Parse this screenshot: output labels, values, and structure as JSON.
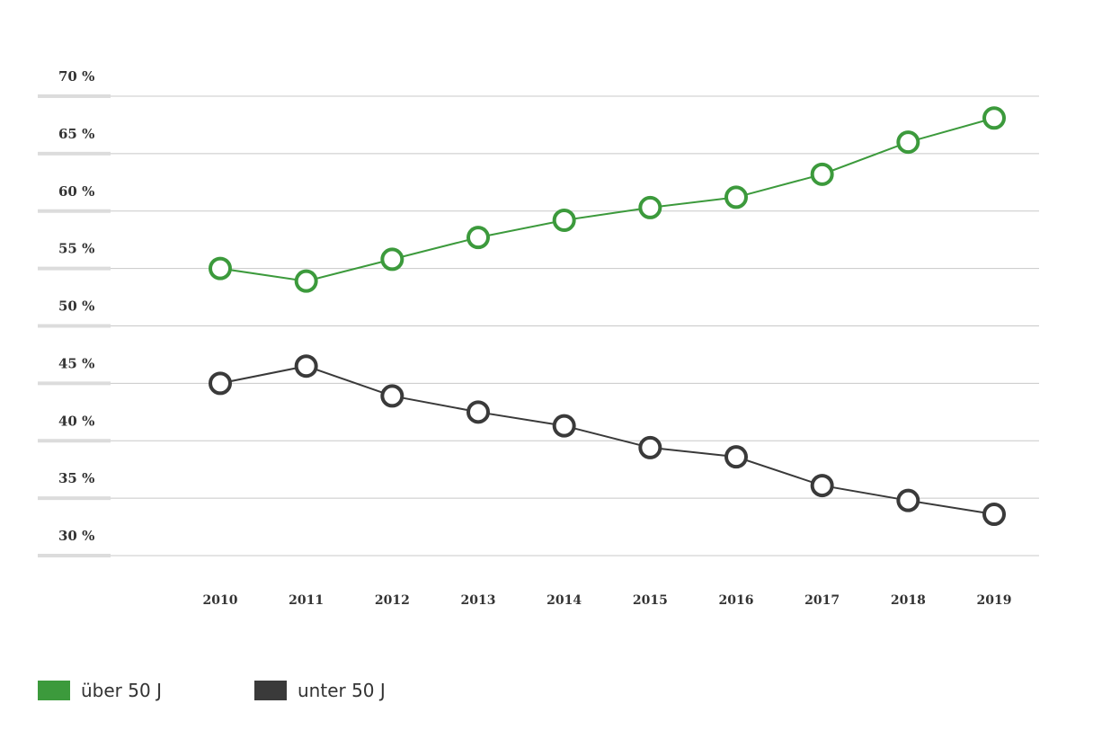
{
  "chart_data": {
    "type": "line",
    "title": "",
    "xlabel": "",
    "ylabel": "",
    "x": [
      "2010",
      "2011",
      "2012",
      "2013",
      "2014",
      "2015",
      "2016",
      "2017",
      "2018",
      "2019"
    ],
    "y_ticks": [
      "70 %",
      "65 %",
      "60 %",
      "55 %",
      "50 %",
      "45 %",
      "40 %",
      "35 %",
      "30 %"
    ],
    "ylim": [
      30,
      70
    ],
    "grid": true,
    "legend_position": "bottom-left",
    "series": [
      {
        "name": "über 50 J",
        "color": "#3c9a3c",
        "values": [
          55.0,
          53.9,
          55.8,
          57.7,
          59.2,
          60.3,
          61.2,
          63.2,
          66.0,
          68.1
        ]
      },
      {
        "name": "unter 50 J",
        "color": "#3a3a3a",
        "values": [
          45.0,
          46.5,
          43.9,
          42.5,
          41.3,
          39.4,
          38.6,
          36.1,
          34.8,
          33.6
        ]
      }
    ]
  }
}
